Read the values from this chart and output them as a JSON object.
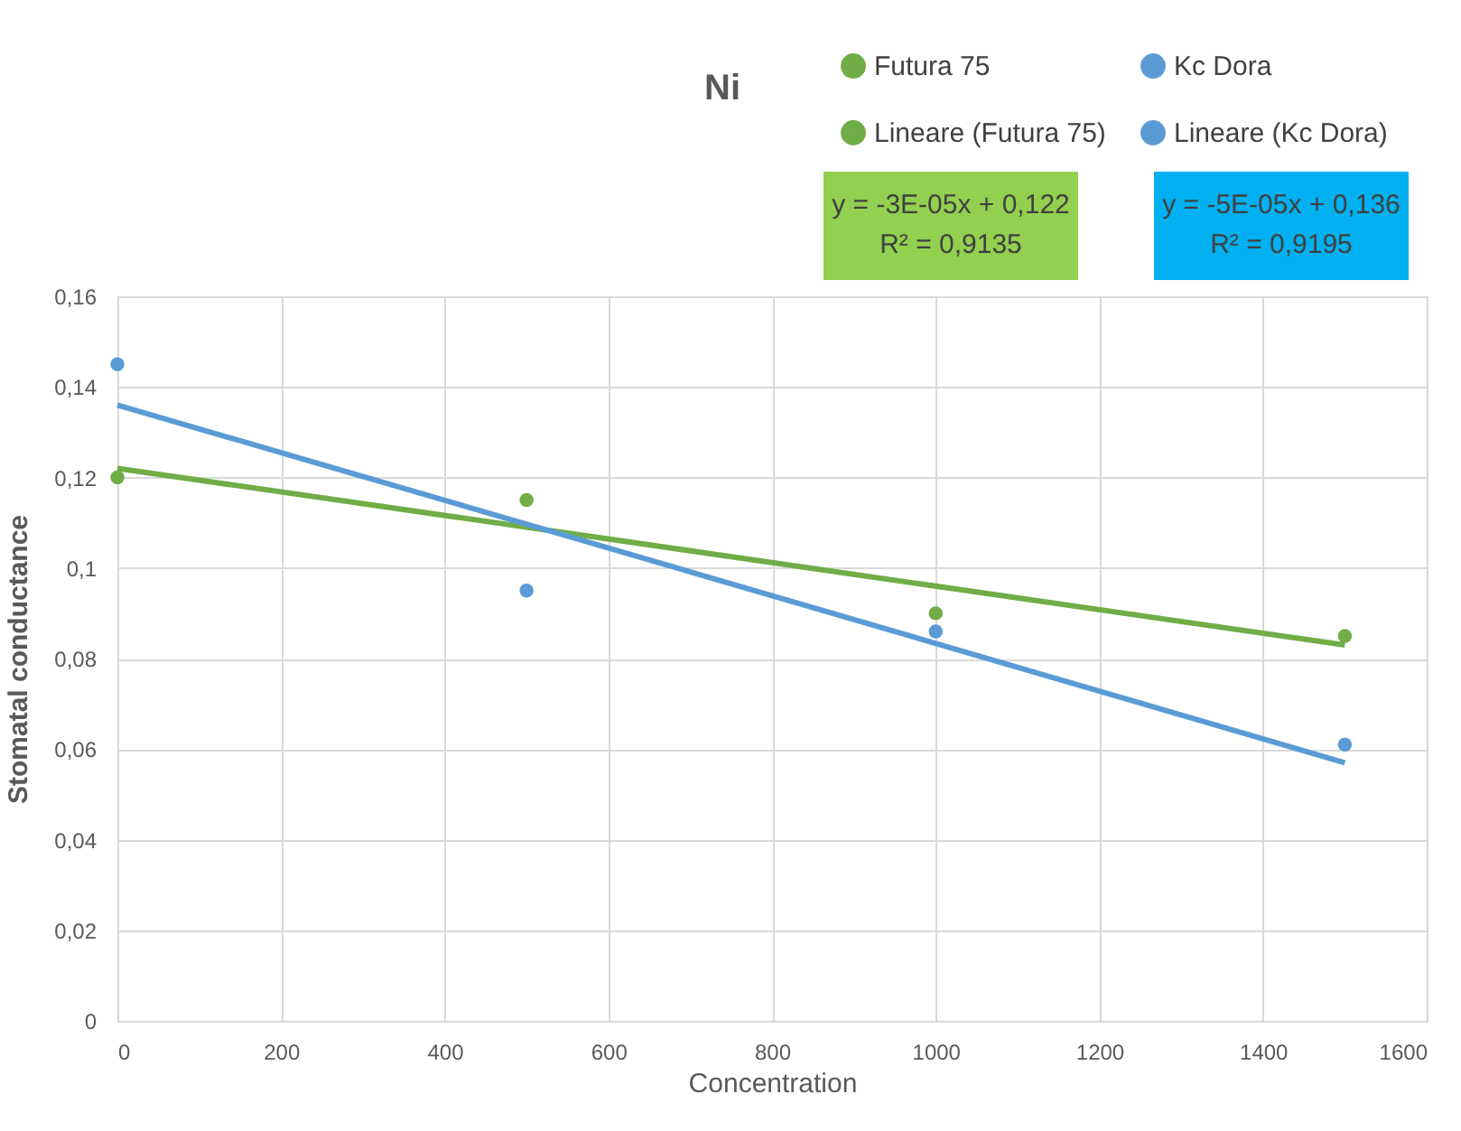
{
  "chart_data": {
    "type": "scatter",
    "title": "Ni",
    "xlabel": "Concentration",
    "ylabel": "Stomatal conductance",
    "series": [
      {
        "name": "Futura 75",
        "marker": "circle",
        "color": "#70ad47",
        "x": [
          0,
          500,
          1000,
          1500
        ],
        "values": [
          0.12,
          0.115,
          0.09,
          0.085
        ]
      },
      {
        "name": "Kc Dora",
        "marker": "circle",
        "color": "#5b9bd5",
        "x": [
          0,
          500,
          1000,
          1500
        ],
        "values": [
          0.145,
          0.095,
          0.086,
          0.061
        ]
      },
      {
        "name": "Lineare (Futura 75)",
        "type": "line",
        "marker": "none",
        "color": "#70ad47",
        "x": [
          0,
          1500
        ],
        "values": [
          0.122,
          0.083
        ]
      },
      {
        "name": "Lineare (Kc Dora)",
        "type": "line",
        "marker": "none",
        "color": "#5b9bd5",
        "x": [
          0,
          1500
        ],
        "values": [
          0.136,
          0.057
        ]
      }
    ],
    "annotations": [
      "y = -3E-05x + 0,122",
      "R² = 0,9135",
      "y = -5E-05x + 0,136",
      "R² = 0,9195"
    ],
    "xlim": [
      0,
      1600
    ],
    "xticks": [
      0,
      200,
      400,
      600,
      800,
      1000,
      1200,
      1400,
      1600
    ],
    "ylim": [
      0,
      0.16
    ],
    "yticks": [
      0,
      {
        "value": 0.02,
        "label": "0,02"
      },
      {
        "value": 0.04,
        "label": "0,04"
      },
      {
        "value": 0.06,
        "label": "0,06"
      },
      {
        "value": 0.08,
        "label": "0,08"
      },
      {
        "value": 0.1,
        "label": "0,1"
      },
      {
        "value": 0.12,
        "label": "0,12"
      },
      {
        "value": 0.14,
        "label": "0,14"
      },
      {
        "value": 0.16,
        "label": "0,16"
      }
    ],
    "grid": true,
    "legend": "top right",
    "line_style": "solid"
  }
}
